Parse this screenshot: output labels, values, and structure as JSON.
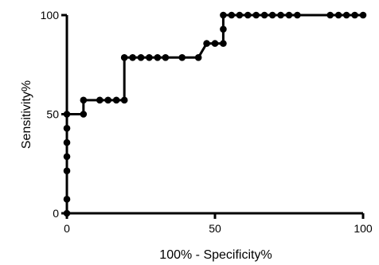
{
  "chart_data": {
    "type": "line",
    "xlabel": "100% - Specificity%",
    "ylabel": "Sensitivity%",
    "xlim": [
      0,
      100
    ],
    "ylim": [
      0,
      100
    ],
    "x_ticks": [
      0,
      50,
      100
    ],
    "y_ticks": [
      0,
      50,
      100
    ],
    "grid": false,
    "colors": {
      "line": "#000000",
      "marker": "#000000",
      "axis": "#000000"
    },
    "series": [
      {
        "markers": "filled-circle",
        "points": [
          {
            "x": 0,
            "y": 0
          },
          {
            "x": 0,
            "y": 7.1
          },
          {
            "x": 0,
            "y": 21.4
          },
          {
            "x": 0,
            "y": 28.6
          },
          {
            "x": 0,
            "y": 35.7
          },
          {
            "x": 0,
            "y": 42.9
          },
          {
            "x": 0,
            "y": 50
          },
          {
            "x": 5.6,
            "y": 50
          },
          {
            "x": 5.6,
            "y": 57.1
          },
          {
            "x": 11.1,
            "y": 57.1
          },
          {
            "x": 13.9,
            "y": 57.1
          },
          {
            "x": 16.7,
            "y": 57.1
          },
          {
            "x": 19.4,
            "y": 57.1
          },
          {
            "x": 19.4,
            "y": 78.6
          },
          {
            "x": 22.2,
            "y": 78.6
          },
          {
            "x": 25,
            "y": 78.6
          },
          {
            "x": 27.8,
            "y": 78.6
          },
          {
            "x": 30.6,
            "y": 78.6
          },
          {
            "x": 33.3,
            "y": 78.6
          },
          {
            "x": 38.9,
            "y": 78.6
          },
          {
            "x": 44.4,
            "y": 78.6
          },
          {
            "x": 47.2,
            "y": 85.7
          },
          {
            "x": 50,
            "y": 85.7
          },
          {
            "x": 52.8,
            "y": 85.7
          },
          {
            "x": 52.8,
            "y": 92.9
          },
          {
            "x": 52.8,
            "y": 100
          },
          {
            "x": 55.6,
            "y": 100
          },
          {
            "x": 58.3,
            "y": 100
          },
          {
            "x": 61.1,
            "y": 100
          },
          {
            "x": 63.9,
            "y": 100
          },
          {
            "x": 66.7,
            "y": 100
          },
          {
            "x": 69.4,
            "y": 100
          },
          {
            "x": 72.2,
            "y": 100
          },
          {
            "x": 75,
            "y": 100
          },
          {
            "x": 77.8,
            "y": 100
          },
          {
            "x": 88.9,
            "y": 100
          },
          {
            "x": 91.7,
            "y": 100
          },
          {
            "x": 94.4,
            "y": 100
          },
          {
            "x": 97.2,
            "y": 100
          },
          {
            "x": 100,
            "y": 100
          }
        ]
      }
    ]
  }
}
